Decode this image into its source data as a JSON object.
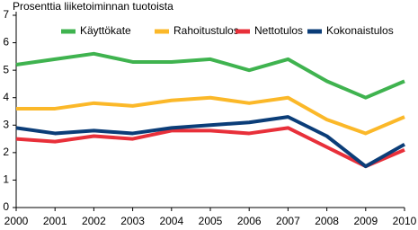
{
  "chart_data": {
    "type": "line",
    "title": "Prosenttia liiketoiminnan tuotoista",
    "categories": [
      "2000",
      "2001",
      "2002",
      "2003",
      "2004",
      "2005",
      "2006",
      "2007",
      "2008",
      "2009",
      "2010"
    ],
    "series": [
      {
        "name": "Käyttökate",
        "color": "#3fb34f",
        "values": [
          5.2,
          5.4,
          5.6,
          5.3,
          5.3,
          5.4,
          5.0,
          5.4,
          4.6,
          4.0,
          4.6
        ]
      },
      {
        "name": "Rahoitustulos",
        "color": "#fbb829",
        "values": [
          3.6,
          3.6,
          3.8,
          3.7,
          3.9,
          4.0,
          3.8,
          4.0,
          3.2,
          2.7,
          3.3
        ]
      },
      {
        "name": "Nettotulos",
        "color": "#e8303a",
        "values": [
          2.5,
          2.4,
          2.6,
          2.5,
          2.8,
          2.8,
          2.7,
          2.9,
          2.2,
          1.5,
          2.1
        ]
      },
      {
        "name": "Kokonaistulos",
        "color": "#0b3d78",
        "values": [
          2.9,
          2.7,
          2.8,
          2.7,
          2.9,
          3.0,
          3.1,
          3.3,
          2.6,
          1.5,
          2.3
        ]
      }
    ],
    "ylim": [
      0,
      7
    ],
    "yticks": [
      0,
      1,
      2,
      3,
      4,
      5,
      6,
      7
    ],
    "grid": false
  }
}
